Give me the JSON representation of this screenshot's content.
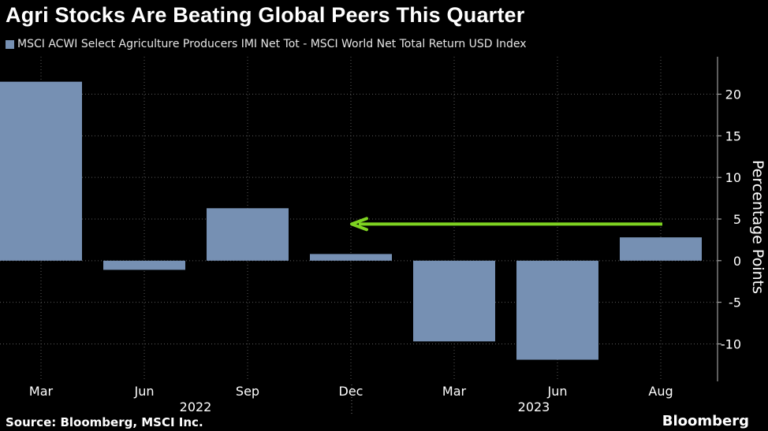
{
  "chart_data": {
    "type": "bar",
    "title": "Agri Stocks Are Beating Global Peers This Quarter",
    "legend": "MSCI ACWI Select Agriculture Producers IMI Net Tot - MSCI World Net Total Return USD Index",
    "categories": [
      "Mar",
      "Jun",
      "Sep",
      "Dec",
      "Mar",
      "Jun",
      "Aug"
    ],
    "year_labels": [
      "2022",
      "2023"
    ],
    "values": [
      21.5,
      -1.1,
      6.3,
      0.8,
      -9.7,
      -11.9,
      2.8
    ],
    "ylabel": "Percentage Points",
    "yticks": [
      -10,
      -5,
      0,
      5,
      10,
      15,
      20
    ],
    "ylim": [
      -14.5,
      24.5
    ],
    "annotation": "arrow pointing left at level of 4.4",
    "bar_color": "#7690b3",
    "arrow_color": "#7ed321"
  },
  "footer": {
    "source": "Source: Bloomberg, MSCI Inc.",
    "brand": "Bloomberg"
  }
}
